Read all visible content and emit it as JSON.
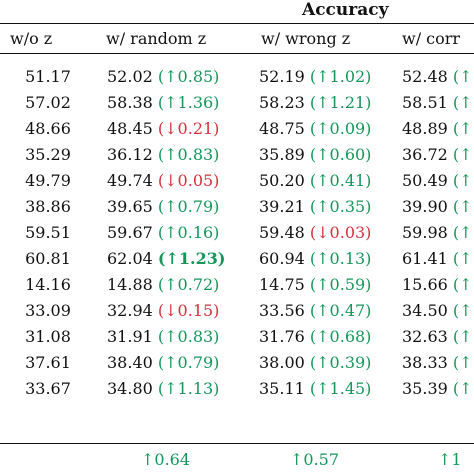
{
  "caption": "Accuracy",
  "columns": {
    "col0": "w/o z",
    "col1": "w/ random z",
    "col2": "w/ wrong z",
    "col3": "w/ corr"
  },
  "rows": [
    {
      "base": "51.17",
      "random": "52.02",
      "random_delta": "(↑0.85)",
      "random_dir": "up",
      "wrong": "52.19",
      "wrong_delta": "(↑1.02)",
      "wrong_dir": "up",
      "corr": "52.48",
      "corr_delta": "(↑1",
      "corr_dir": "up"
    },
    {
      "base": "57.02",
      "random": "58.38",
      "random_delta": "(↑1.36)",
      "random_dir": "up",
      "wrong": "58.23",
      "wrong_delta": "(↑1.21)",
      "wrong_dir": "up",
      "corr": "58.51",
      "corr_delta": "(↑1",
      "corr_dir": "up"
    },
    {
      "base": "48.66",
      "random": "48.45",
      "random_delta": "(↓0.21)",
      "random_dir": "down",
      "wrong": "48.75",
      "wrong_delta": "(↑0.09)",
      "wrong_dir": "up",
      "corr": "48.89",
      "corr_delta": "(↑",
      "corr_dir": "up"
    },
    {
      "base": "35.29",
      "random": "36.12",
      "random_delta": "(↑0.83)",
      "random_dir": "up",
      "wrong": "35.89",
      "wrong_delta": "(↑0.60)",
      "wrong_dir": "up",
      "corr": "36.72",
      "corr_delta": "(↑1",
      "corr_dir": "up"
    },
    {
      "base": "49.79",
      "random": "49.74",
      "random_delta": "(↓0.05)",
      "random_dir": "down",
      "wrong": "50.20",
      "wrong_delta": "(↑0.41)",
      "wrong_dir": "up",
      "corr": "50.49",
      "corr_delta": "(↑",
      "corr_dir": "up"
    },
    {
      "base": "38.86",
      "random": "39.65",
      "random_delta": "(↑0.79)",
      "random_dir": "up",
      "wrong": "39.21",
      "wrong_delta": "(↑0.35)",
      "wrong_dir": "up",
      "corr": "39.90",
      "corr_delta": "(↑1",
      "corr_dir": "up"
    },
    {
      "base": "59.51",
      "random": "59.67",
      "random_delta": "(↑0.16)",
      "random_dir": "up",
      "wrong": "59.48",
      "wrong_delta": "(↓0.03)",
      "wrong_dir": "down",
      "corr": "59.98",
      "corr_delta": "(↑",
      "corr_dir": "up"
    },
    {
      "base": "60.81",
      "random": "62.04",
      "random_delta": "(↑1.23)",
      "random_dir": "up",
      "random_bold": true,
      "wrong": "60.94",
      "wrong_delta": "(↑0.13)",
      "wrong_dir": "up",
      "corr": "61.41",
      "corr_delta": "(↑",
      "corr_dir": "up"
    },
    {
      "base": "14.16",
      "random": "14.88",
      "random_delta": "(↑0.72)",
      "random_dir": "up",
      "wrong": "14.75",
      "wrong_delta": "(↑0.59)",
      "wrong_dir": "up",
      "corr": "15.66",
      "corr_delta": "(↑1",
      "corr_dir": "up"
    },
    {
      "base": "33.09",
      "random": "32.94",
      "random_delta": "(↓0.15)",
      "random_dir": "down",
      "wrong": "33.56",
      "wrong_delta": "(↑0.47)",
      "wrong_dir": "up",
      "corr": "34.50",
      "corr_delta": "(↑1",
      "corr_dir": "up"
    },
    {
      "base": "31.08",
      "random": "31.91",
      "random_delta": "(↑0.83)",
      "random_dir": "up",
      "wrong": "31.76",
      "wrong_delta": "(↑0.68)",
      "wrong_dir": "up",
      "corr": "32.63",
      "corr_delta": "(↑1",
      "corr_dir": "up"
    },
    {
      "base": "37.61",
      "random": "38.40",
      "random_delta": "(↑0.79)",
      "random_dir": "up",
      "wrong": "38.00",
      "wrong_delta": "(↑0.39)",
      "wrong_dir": "up",
      "corr": "38.33",
      "corr_delta": "(↑",
      "corr_dir": "up"
    },
    {
      "base": "33.67",
      "random": "34.80",
      "random_delta": "(↑1.13)",
      "random_dir": "up",
      "wrong": "35.11",
      "wrong_delta": "(↑1.45)",
      "wrong_dir": "up",
      "corr": "35.39",
      "corr_delta": "(↑1",
      "corr_dir": "up"
    }
  ],
  "footer": {
    "random_avg": "↑0.64",
    "wrong_avg": "↑0.57",
    "corr_avg": "↑1"
  },
  "colors": {
    "up": "#16965a",
    "down": "#d3313b",
    "text": "#111111"
  }
}
